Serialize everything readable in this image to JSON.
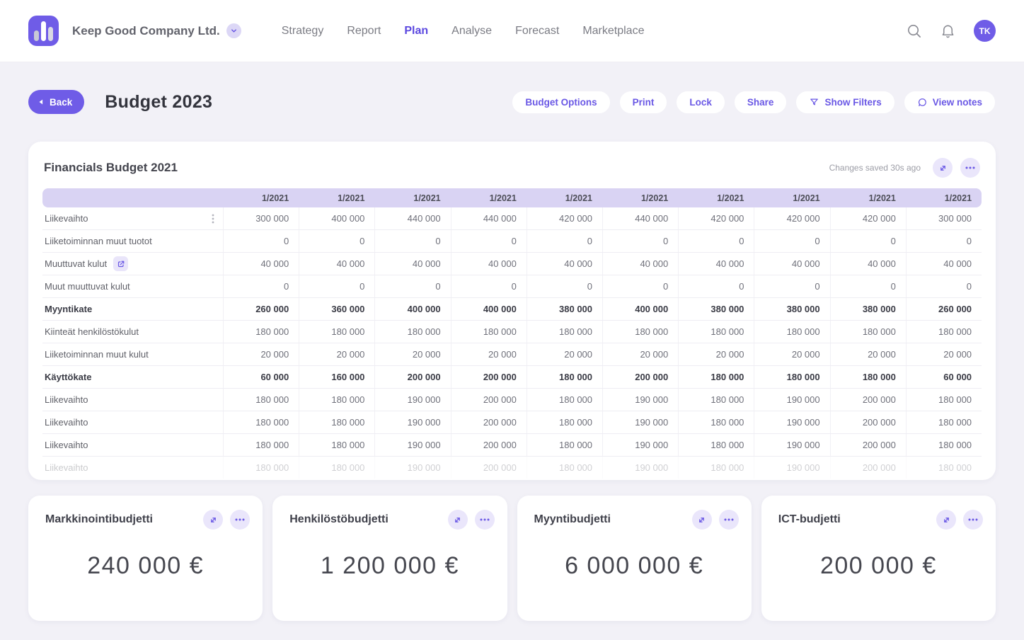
{
  "topnav": {
    "company": "Keep Good Company Ltd.",
    "avatar": "TK",
    "items": [
      {
        "label": "Strategy",
        "active": false
      },
      {
        "label": "Report",
        "active": false
      },
      {
        "label": "Plan",
        "active": true
      },
      {
        "label": "Analyse",
        "active": false
      },
      {
        "label": "Forecast",
        "active": false
      },
      {
        "label": "Marketplace",
        "active": false
      }
    ],
    "icons": [
      "search-icon",
      "bell-icon"
    ]
  },
  "page_header": {
    "back_label": "Back",
    "title": "Budget 2023",
    "actions": [
      {
        "label": "Budget Options",
        "icon": null
      },
      {
        "label": "Print",
        "icon": null
      },
      {
        "label": "Lock",
        "icon": null
      },
      {
        "label": "Share",
        "icon": null
      },
      {
        "label": "Show Filters",
        "icon": "funnel-icon"
      },
      {
        "label": "View notes",
        "icon": "bubble-icon"
      }
    ]
  },
  "table_card": {
    "title": "Financials Budget 2021",
    "status": "Changes saved 30s ago",
    "header_icons": [
      "expand-icon",
      "ellipsis-icon"
    ],
    "columns": [
      "1/2021",
      "1/2021",
      "1/2021",
      "1/2021",
      "1/2021",
      "1/2021",
      "1/2021",
      "1/2021",
      "1/2021",
      "1/2021"
    ],
    "rows": [
      {
        "label": "Liikevaihto",
        "bold": false,
        "menu": true,
        "link": false,
        "faded": false,
        "values": [
          "300 000",
          "400 000",
          "440 000",
          "440 000",
          "420 000",
          "440 000",
          "420 000",
          "420 000",
          "420 000",
          "300 000"
        ]
      },
      {
        "label": "Liiketoiminnan muut tuotot",
        "bold": false,
        "menu": false,
        "link": false,
        "faded": false,
        "values": [
          "0",
          "0",
          "0",
          "0",
          "0",
          "0",
          "0",
          "0",
          "0",
          "0"
        ]
      },
      {
        "label": "Muuttuvat kulut",
        "bold": false,
        "menu": false,
        "link": true,
        "faded": false,
        "values": [
          "40 000",
          "40 000",
          "40 000",
          "40 000",
          "40 000",
          "40 000",
          "40 000",
          "40 000",
          "40 000",
          "40 000"
        ]
      },
      {
        "label": "Muut muuttuvat kulut",
        "bold": false,
        "menu": false,
        "link": false,
        "faded": false,
        "values": [
          "0",
          "0",
          "0",
          "0",
          "0",
          "0",
          "0",
          "0",
          "0",
          "0"
        ]
      },
      {
        "label": "Myyntikate",
        "bold": true,
        "menu": false,
        "link": false,
        "faded": false,
        "values": [
          "260 000",
          "360 000",
          "400 000",
          "400 000",
          "380 000",
          "400 000",
          "380 000",
          "380 000",
          "380 000",
          "260 000"
        ]
      },
      {
        "label": "Kiinteät henkilöstökulut",
        "bold": false,
        "menu": false,
        "link": false,
        "faded": false,
        "values": [
          "180 000",
          "180 000",
          "180 000",
          "180 000",
          "180 000",
          "180 000",
          "180 000",
          "180 000",
          "180 000",
          "180 000"
        ]
      },
      {
        "label": "Liiketoiminnan muut kulut",
        "bold": false,
        "menu": false,
        "link": false,
        "faded": false,
        "values": [
          "20 000",
          "20 000",
          "20 000",
          "20 000",
          "20 000",
          "20 000",
          "20 000",
          "20 000",
          "20 000",
          "20 000"
        ]
      },
      {
        "label": "Käyttökate",
        "bold": true,
        "menu": false,
        "link": false,
        "faded": false,
        "values": [
          "60 000",
          "160 000",
          "200 000",
          "200 000",
          "180 000",
          "200 000",
          "180 000",
          "180 000",
          "180 000",
          "60 000"
        ]
      },
      {
        "label": "Liikevaihto",
        "bold": false,
        "menu": false,
        "link": false,
        "faded": false,
        "values": [
          "180 000",
          "180 000",
          "190 000",
          "200 000",
          "180 000",
          "190 000",
          "180 000",
          "190 000",
          "200 000",
          "180 000"
        ]
      },
      {
        "label": "Liikevaihto",
        "bold": false,
        "menu": false,
        "link": false,
        "faded": false,
        "values": [
          "180 000",
          "180 000",
          "190 000",
          "200 000",
          "180 000",
          "190 000",
          "180 000",
          "190 000",
          "200 000",
          "180 000"
        ]
      },
      {
        "label": "Liikevaihto",
        "bold": false,
        "menu": false,
        "link": false,
        "faded": false,
        "values": [
          "180 000",
          "180 000",
          "190 000",
          "200 000",
          "180 000",
          "190 000",
          "180 000",
          "190 000",
          "200 000",
          "180 000"
        ]
      },
      {
        "label": "Liikevaihto",
        "bold": false,
        "menu": false,
        "link": false,
        "faded": true,
        "values": [
          "180 000",
          "180 000",
          "190 000",
          "200 000",
          "180 000",
          "190 000",
          "180 000",
          "190 000",
          "200 000",
          "180 000"
        ]
      }
    ]
  },
  "budget_cards": [
    {
      "title": "Markkinointibudjetti",
      "amount": "240 000 €",
      "icons": [
        "expand-icon",
        "ellipsis-icon"
      ]
    },
    {
      "title": "Henkilöstöbudjetti",
      "amount": "1 200 000 €",
      "icons": [
        "expand-icon",
        "ellipsis-icon"
      ]
    },
    {
      "title": "Myyntibudjetti",
      "amount": "6 000 000 €",
      "icons": [
        "expand-icon",
        "ellipsis-icon"
      ]
    },
    {
      "title": "ICT-budjetti",
      "amount": "200 000 €",
      "icons": [
        "expand-icon",
        "ellipsis-icon"
      ]
    }
  ],
  "colors": {
    "accent": "#6f5ce7",
    "accent_text": "#6a58e5",
    "table_header_bg": "#d9d3f3",
    "icon_chip_bg": "#eae6fb",
    "page_bg": "#f2f1f7"
  }
}
